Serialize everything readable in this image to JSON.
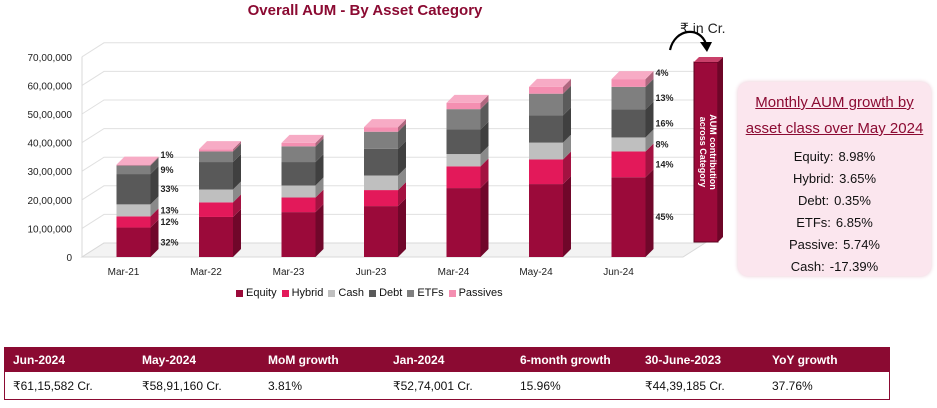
{
  "chart_data": {
    "type": "bar",
    "stacked": true,
    "title": "Overall AUM - By Asset Category",
    "unit_note": "₹ in Cr.",
    "categories": [
      "Mar-21",
      "Mar-22",
      "Mar-23",
      "Jun-23",
      "Mar-24",
      "May-24",
      "Jun-24"
    ],
    "ylim": [
      0,
      7000000
    ],
    "yticks": [
      "0",
      "10,00,000",
      "20,00,000",
      "30,00,000",
      "40,00,000",
      "50,00,000",
      "60,00,000",
      "70,00,000"
    ],
    "series": [
      {
        "name": "Equity",
        "color": "#9b0a3a",
        "values": [
          1030000,
          1400000,
          1570000,
          1780000,
          2410000,
          2550000,
          2790000
        ]
      },
      {
        "name": "Hybrid",
        "color": "#e3195a",
        "values": [
          390000,
          510000,
          510000,
          560000,
          760000,
          860000,
          900000
        ]
      },
      {
        "name": "Cash",
        "color": "#bfbfbf",
        "values": [
          420000,
          450000,
          420000,
          510000,
          430000,
          590000,
          490000
        ]
      },
      {
        "name": "Debt",
        "color": "#595959",
        "values": [
          1060000,
          960000,
          820000,
          930000,
          860000,
          950000,
          980000
        ]
      },
      {
        "name": "ETFs",
        "color": "#7f7f7f",
        "values": [
          300000,
          370000,
          550000,
          600000,
          710000,
          760000,
          790000
        ]
      },
      {
        "name": "Passives",
        "color": "#f48fb1",
        "values": [
          30000,
          80000,
          120000,
          160000,
          220000,
          240000,
          270000
        ]
      }
    ],
    "data_labels": {
      "Mar-21": [
        "32%",
        "12%",
        "13%",
        "33%",
        "9%",
        "1%"
      ],
      "Jun-24": [
        "45%",
        "14%",
        "8%",
        "16%",
        "13%",
        "4%"
      ]
    },
    "legend": "bottom"
  },
  "side_bar_label": "AUM contribution across Category",
  "growth": {
    "title": "Monthly AUM growth by asset class over May 2024",
    "rows": [
      {
        "label": "Equity:",
        "value": "8.98%"
      },
      {
        "label": "Hybrid:",
        "value": "3.65%"
      },
      {
        "label": "Debt:",
        "value": "0.35%"
      },
      {
        "label": "ETFs:",
        "value": "6.85%"
      },
      {
        "label": "Passive:",
        "value": "5.74%"
      },
      {
        "label": "Cash:",
        "value": "-17.39%"
      }
    ]
  },
  "table": {
    "headers": [
      "Jun-2024",
      "May-2024",
      "MoM growth",
      "Jan-2024",
      "6-month growth",
      "30-June-2023",
      "YoY growth"
    ],
    "values": [
      "₹61,15,582 Cr.",
      "₹58,91,160 Cr.",
      "3.81%",
      "₹52,74,001 Cr.",
      "15.96%",
      "₹44,39,185 Cr.",
      "37.76%"
    ]
  }
}
